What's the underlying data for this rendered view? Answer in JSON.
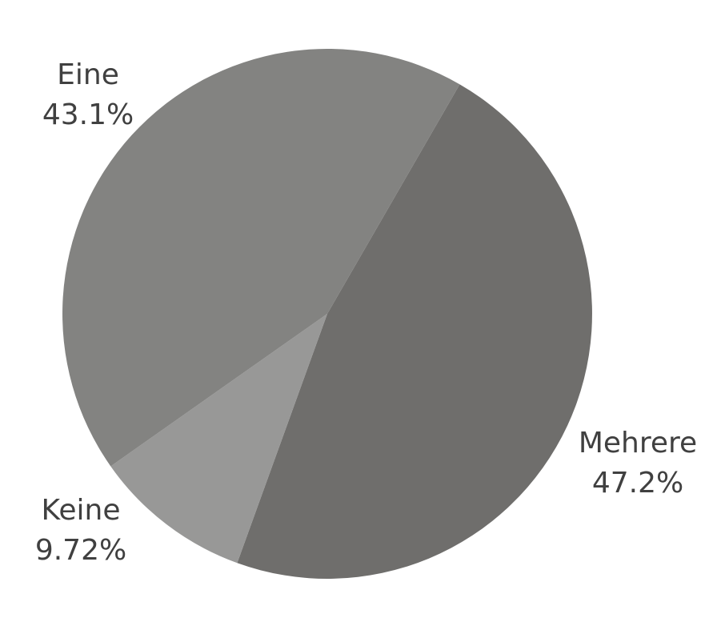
{
  "chart_data": {
    "type": "pie",
    "title": "",
    "slices": [
      {
        "label": "Mehrere",
        "value": 47.2,
        "value_label": "47.2%",
        "color": "#6f6e6c"
      },
      {
        "label": "Keine",
        "value": 9.72,
        "value_label": "9.72%",
        "color": "#989897"
      },
      {
        "label": "Eine",
        "value": 43.1,
        "value_label": "43.1%",
        "color": "#838381"
      }
    ],
    "start_angle_deg": 30,
    "direction": "clockwise",
    "legend": "none"
  }
}
